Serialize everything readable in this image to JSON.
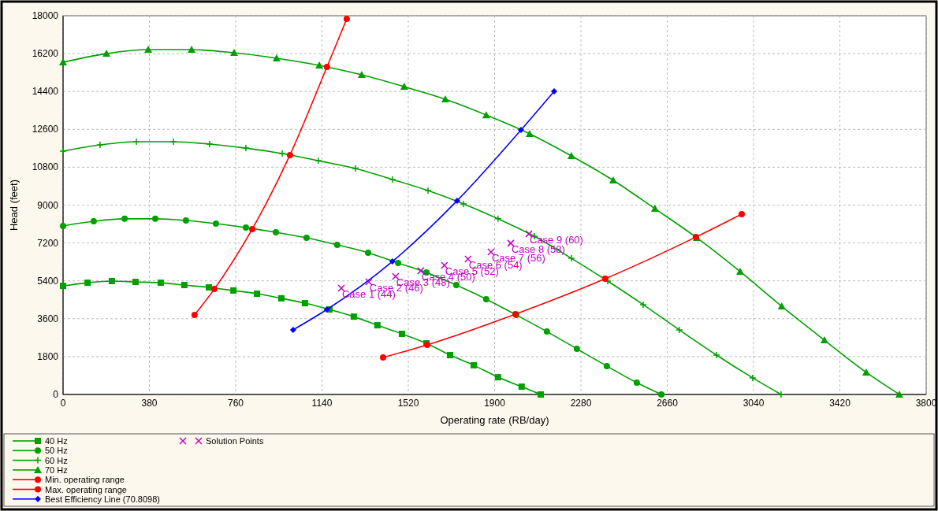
{
  "chart_data": {
    "type": "line",
    "xlabel": "Operating rate  (RB/day)",
    "ylabel": "Head  (feet)",
    "xlim": [
      0,
      3800
    ],
    "ylim": [
      0,
      18000
    ],
    "xticks": [
      0,
      380,
      760,
      1140,
      1520,
      1900,
      2280,
      2660,
      3040,
      3420,
      3800
    ],
    "yticks": [
      0,
      1800,
      3600,
      5400,
      7200,
      9000,
      10800,
      12600,
      14400,
      16200,
      18000
    ],
    "grid": true,
    "legend": "bottom",
    "series": [
      {
        "name": "40 Hz",
        "color": "#00a000",
        "marker": "square",
        "x": [
          0,
          108,
          215,
          319,
          430,
          534,
          642,
          750,
          854,
          961,
          1065,
          1173,
          1280,
          1384,
          1492,
          1600,
          1704,
          1808,
          1915,
          2019,
          2103
        ],
        "values": [
          5160,
          5310,
          5390,
          5350,
          5310,
          5200,
          5090,
          4940,
          4790,
          4570,
          4340,
          4040,
          3700,
          3290,
          2880,
          2430,
          1870,
          1390,
          820,
          370,
          0
        ]
      },
      {
        "name": "50 Hz",
        "color": "#00a000",
        "marker": "circle",
        "x": [
          0,
          135,
          271,
          406,
          541,
          673,
          805,
          937,
          1072,
          1207,
          1343,
          1475,
          1600,
          1731,
          1863,
          1995,
          2130,
          2262,
          2394,
          2526,
          2634
        ],
        "values": [
          8010,
          8230,
          8350,
          8350,
          8270,
          8120,
          7930,
          7710,
          7450,
          7110,
          6740,
          6250,
          5800,
          5200,
          4530,
          3780,
          2990,
          2170,
          1350,
          560,
          0
        ]
      },
      {
        "name": "60 Hz",
        "color": "#00a000",
        "marker": "cross",
        "x": [
          0,
          163,
          323,
          486,
          645,
          805,
          965,
          1124,
          1287,
          1450,
          1607,
          1763,
          1915,
          2075,
          2238,
          2398,
          2554,
          2713,
          2877,
          3036,
          3161
        ],
        "values": [
          11560,
          11860,
          12010,
          12010,
          11900,
          11710,
          11450,
          11110,
          10740,
          10220,
          9690,
          9060,
          8350,
          7520,
          6470,
          5390,
          4270,
          3070,
          1870,
          790,
          0
        ]
      },
      {
        "name": "70 Hz",
        "color": "#00a000",
        "marker": "triangle",
        "x": [
          0,
          191,
          375,
          566,
          753,
          940,
          1128,
          1315,
          1502,
          1683,
          1863,
          2054,
          2238,
          2422,
          2606,
          2790,
          2981,
          3164,
          3352,
          3536,
          3682
        ],
        "values": [
          15790,
          16200,
          16390,
          16390,
          16240,
          15980,
          15640,
          15190,
          14630,
          14030,
          13280,
          12390,
          11340,
          10180,
          8830,
          7450,
          5840,
          4190,
          2580,
          1050,
          0
        ]
      },
      {
        "name": "Min. operating range",
        "color": "#ff0000",
        "marker": "circle",
        "x": [
          579,
          666,
          833,
          999,
          1162,
          1249
        ],
        "values": [
          3780,
          5010,
          7860,
          11380,
          15570,
          17850
        ]
      },
      {
        "name": "Max. operating range",
        "color": "#ff0000",
        "marker": "circle",
        "x": [
          1409,
          1603,
          1992,
          2387,
          2786,
          2988
        ],
        "values": [
          1760,
          2360,
          3820,
          5500,
          7480,
          8570
        ]
      },
      {
        "name": "Best Efficiency Line (70.8098)",
        "color": "#0000ff",
        "marker": "diamond",
        "x": [
          1013,
          1162,
          1450,
          1735,
          2016,
          2162
        ],
        "values": [
          3070,
          4040,
          6320,
          9210,
          12570,
          14410
        ]
      },
      {
        "name": "Solution Points",
        "type": "scatter",
        "color": "#c000c0",
        "marker": "x",
        "x": [
          1225,
          1346,
          1464,
          1575,
          1679,
          1783,
          1884,
          1971,
          2051
        ],
        "values": [
          5050,
          5350,
          5610,
          5880,
          6140,
          6440,
          6770,
          7190,
          7630
        ]
      }
    ],
    "annotations": [
      {
        "text": "Case 1 (44)",
        "x": 1225,
        "y": 5050
      },
      {
        "text": "Case 2 (46)",
        "x": 1346,
        "y": 5350
      },
      {
        "text": "Case 3 (48)",
        "x": 1464,
        "y": 5610
      },
      {
        "text": "Case 4 (50)",
        "x": 1575,
        "y": 5880
      },
      {
        "text": "Case 5 (52)",
        "x": 1679,
        "y": 6140
      },
      {
        "text": "Case 6 (54)",
        "x": 1783,
        "y": 6440
      },
      {
        "text": "Case 7 (56)",
        "x": 1884,
        "y": 6770
      },
      {
        "text": "Case 8 (58)",
        "x": 1971,
        "y": 7190
      },
      {
        "text": "Case 9 (60)",
        "x": 2051,
        "y": 7630
      }
    ]
  }
}
